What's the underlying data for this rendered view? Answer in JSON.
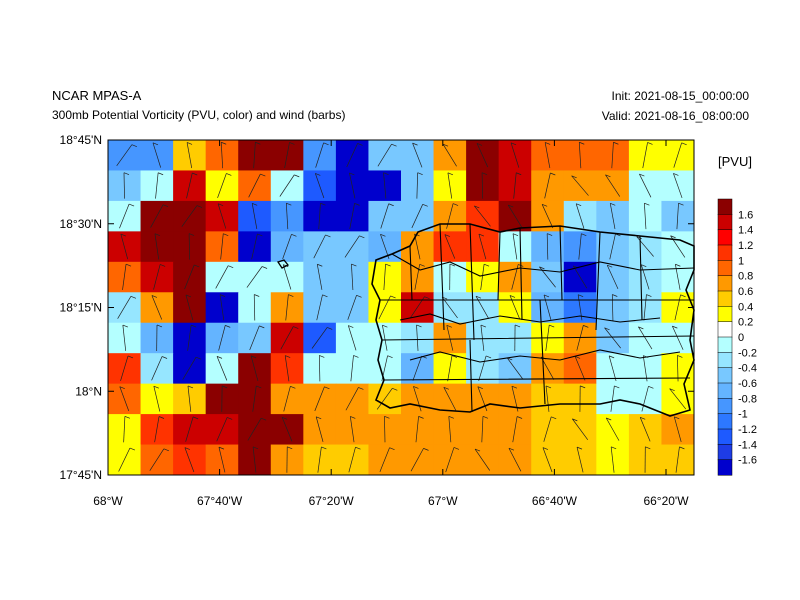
{
  "header": {
    "title": "NCAR MPAS-A",
    "subtitle": "300mb Potential Vorticity (PVU, color) and wind (barbs)",
    "init": "Init: 2021-08-15_00:00:00",
    "valid": "Valid: 2021-08-16_08:00:00"
  },
  "axes": {
    "lat_labels": [
      "18°45'N",
      "18°30'N",
      "18°15'N",
      "18°N",
      "17°45'N"
    ],
    "lon_labels": [
      "68°W",
      "67°40'W",
      "67°20'W",
      "67°W",
      "66°40'W",
      "66°20'W"
    ]
  },
  "colorbar": {
    "title": "[PVU]",
    "labels": [
      "1.6",
      "1.4",
      "1.2",
      "1",
      "0.8",
      "0.6",
      "0.4",
      "0.2",
      "0",
      "-0.2",
      "-0.4",
      "-0.6",
      "-0.8",
      "-1",
      "-1.2",
      "-1.4",
      "-1.6"
    ],
    "colors": [
      "#8b0000",
      "#cc0000",
      "#ff0000",
      "#ff3300",
      "#ff6600",
      "#ff9900",
      "#ffcc00",
      "#ffff00",
      "#ffffff",
      "#b4ffff",
      "#96e6ff",
      "#78c8ff",
      "#64b4ff",
      "#4696ff",
      "#2d78ff",
      "#1e5aff",
      "#1e3ce6",
      "#0000cd"
    ]
  },
  "chart_data": {
    "type": "heatmap",
    "title": "300mb Potential Vorticity (PVU, color) and wind (barbs)",
    "units": "PVU",
    "lon_range": [
      -68.0,
      -66.25
    ],
    "lat_range": [
      17.75,
      18.75
    ],
    "rows_north_to_south": [
      [
        -1.0,
        -1.0,
        0.4,
        0.8,
        1.8,
        1.8,
        -1.0,
        -1.8,
        -0.6,
        -0.6,
        0.6,
        1.8,
        1.4,
        0.8,
        0.8,
        0.8,
        0.2,
        0.2
      ],
      [
        -0.6,
        -0.2,
        1.4,
        0.2,
        0.8,
        -0.2,
        -1.4,
        -1.8,
        -1.8,
        -0.6,
        0.2,
        1.8,
        1.4,
        0.6,
        0.6,
        0.6,
        -0.2,
        -0.2
      ],
      [
        -0.2,
        1.8,
        1.8,
        1.4,
        -1.4,
        -1.0,
        -1.8,
        -1.8,
        -0.6,
        -0.6,
        0.6,
        1.0,
        1.8,
        0.6,
        -0.4,
        -0.6,
        -0.2,
        -0.6
      ],
      [
        1.4,
        1.8,
        1.8,
        0.8,
        -1.8,
        -0.8,
        -0.6,
        -0.6,
        -0.8,
        0.6,
        1.0,
        1.0,
        -0.2,
        -0.8,
        -1.0,
        -0.6,
        -0.4,
        -0.2
      ],
      [
        0.8,
        1.4,
        1.8,
        -0.2,
        -0.2,
        -0.2,
        -0.6,
        -0.6,
        0.2,
        0.6,
        -0.2,
        0.2,
        0.6,
        -0.6,
        -1.8,
        -0.6,
        -0.4,
        -0.2
      ],
      [
        -0.4,
        0.6,
        1.8,
        -1.8,
        -0.2,
        0.6,
        -0.6,
        -0.6,
        0.2,
        1.4,
        -0.4,
        -0.4,
        0.2,
        -0.8,
        -1.2,
        -0.6,
        -0.4,
        0.2
      ],
      [
        -0.2,
        -0.8,
        -1.8,
        -0.8,
        -0.6,
        1.4,
        -1.4,
        -0.2,
        -0.2,
        -0.4,
        0.6,
        -0.4,
        -0.4,
        0.2,
        0.6,
        -0.6,
        -0.2,
        -0.2
      ],
      [
        1.0,
        -0.4,
        -1.8,
        -0.2,
        1.8,
        1.0,
        -0.2,
        -0.2,
        -0.2,
        -0.8,
        0.2,
        -0.4,
        -0.6,
        0.6,
        0.8,
        -0.2,
        -0.2,
        0.2
      ],
      [
        0.8,
        0.2,
        0.4,
        1.8,
        1.8,
        0.6,
        0.6,
        0.6,
        0.4,
        0.6,
        0.6,
        0.6,
        0.6,
        0.4,
        0.4,
        -0.2,
        -0.2,
        0.2
      ],
      [
        0.2,
        1.0,
        1.4,
        1.4,
        1.8,
        1.8,
        0.6,
        0.6,
        0.6,
        0.6,
        0.6,
        0.6,
        0.6,
        0.4,
        0.4,
        0.2,
        0.4,
        0.6
      ],
      [
        0.2,
        0.8,
        1.0,
        0.8,
        1.8,
        0.6,
        0.4,
        0.4,
        0.6,
        0.6,
        0.6,
        0.6,
        0.6,
        0.4,
        0.4,
        0.2,
        0.4,
        0.4
      ]
    ]
  }
}
